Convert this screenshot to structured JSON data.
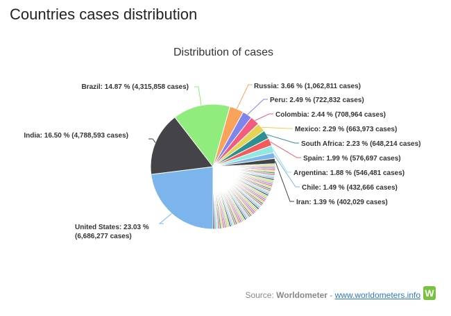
{
  "page": {
    "heading": "Countries cases distribution"
  },
  "source": {
    "prefix": "Source:",
    "brand": "Worldometer",
    "separator": "-",
    "link": "www.worldometers.info",
    "logo_letter": "W"
  },
  "chart_data": {
    "type": "pie",
    "title": "Distribution of cases",
    "slices": [
      {
        "name": "United States",
        "percent": 23.03,
        "cases": "6,686,277",
        "color": "#7cb5ec",
        "label": "United States: 23.03 %|(6,686,277 cases)"
      },
      {
        "name": "India",
        "percent": 16.5,
        "cases": "4,788,593",
        "color": "#434348",
        "label": "India: 16.50 % (4,788,593 cases)"
      },
      {
        "name": "Brazil",
        "percent": 14.87,
        "cases": "4,315,858",
        "color": "#90ed7d",
        "label": "Brazil: 14.87 % (4,315,858 cases)"
      },
      {
        "name": "Russia",
        "percent": 3.66,
        "cases": "1,062,811",
        "color": "#f7a35c",
        "label": "Russia: 3.66 % (1,062,811 cases)"
      },
      {
        "name": "Peru",
        "percent": 2.49,
        "cases": "722,832",
        "color": "#8085e9",
        "label": "Peru: 2.49 % (722,832 cases)"
      },
      {
        "name": "Colombia",
        "percent": 2.44,
        "cases": "708,964",
        "color": "#f15c80",
        "label": "Colombia: 2.44 % (708,964 cases)"
      },
      {
        "name": "Mexico",
        "percent": 2.29,
        "cases": "663,973",
        "color": "#e4d354",
        "label": "Mexico: 2.29 % (663,973 cases)"
      },
      {
        "name": "South Africa",
        "percent": 2.23,
        "cases": "648,214",
        "color": "#2b908f",
        "label": "South Africa: 2.23 % (648,214 cases)"
      },
      {
        "name": "Spain",
        "percent": 1.99,
        "cases": "576,697",
        "color": "#f45b5b",
        "label": "Spain: 1.99 % (576,697 cases)"
      },
      {
        "name": "Argentina",
        "percent": 1.88,
        "cases": "546,481",
        "color": "#91e8e1",
        "label": "Argentina: 1.88 % (546,481 cases)"
      },
      {
        "name": "Chile",
        "percent": 1.49,
        "cases": "432,666",
        "color": "#7cb5ec",
        "label": "Chile: 1.49 % (432,666 cases)"
      },
      {
        "name": "Iran",
        "percent": 1.39,
        "cases": "402,029",
        "color": "#434348",
        "label": "Iran: 1.39 % (402,029 cases)"
      }
    ],
    "other_slice_colors": [
      "#90ed7d",
      "#f7a35c",
      "#8085e9",
      "#f15c80",
      "#e4d354",
      "#2b908f",
      "#f45b5b",
      "#91e8e1",
      "#7cb5ec",
      "#434348"
    ],
    "legend": "none"
  }
}
